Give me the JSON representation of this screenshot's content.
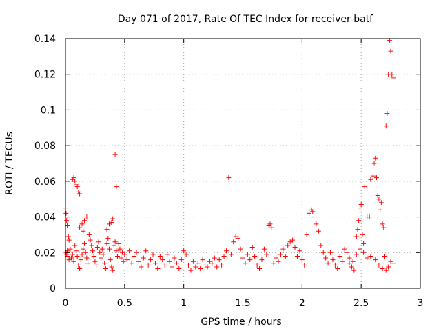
{
  "chart_data": {
    "type": "scatter",
    "title": "Day 071 of 2017, Rate Of TEC Index for receiver batf",
    "xlabel": "GPS time / hours",
    "ylabel": "ROTI / TECUs",
    "xlim": [
      0,
      3
    ],
    "ylim": [
      0,
      0.14
    ],
    "xticks": [
      0,
      0.5,
      1,
      1.5,
      2,
      2.5,
      3
    ],
    "xtick_labels": [
      "0",
      "0.5",
      "1",
      "1.5",
      "2",
      "2.5",
      "3"
    ],
    "yticks": [
      0,
      0.02,
      0.04,
      0.06,
      0.08,
      0.1,
      0.12,
      0.14
    ],
    "ytick_labels": [
      "0",
      "0.02",
      "0.04",
      "0.06",
      "0.08",
      "0.1",
      "0.12",
      "0.14"
    ],
    "grid": true,
    "marker": "+",
    "color": "#ff0000",
    "series": [
      {
        "points": [
          [
            0.0,
            0.045
          ],
          [
            0.005,
            0.042
          ],
          [
            0.01,
            0.038
          ],
          [
            0.015,
            0.035
          ],
          [
            0.02,
            0.04
          ],
          [
            0.025,
            0.029
          ],
          [
            0.03,
            0.027
          ],
          [
            0.06,
            0.061
          ],
          [
            0.07,
            0.062
          ],
          [
            0.08,
            0.06
          ],
          [
            0.09,
            0.058
          ],
          [
            0.1,
            0.057
          ],
          [
            0.11,
            0.054
          ],
          [
            0.12,
            0.053
          ],
          [
            0.16,
            0.038
          ],
          [
            0.18,
            0.04
          ],
          [
            0.12,
            0.034
          ],
          [
            0.14,
            0.036
          ],
          [
            0.15,
            0.032
          ],
          [
            0.37,
            0.036
          ],
          [
            0.39,
            0.037
          ],
          [
            0.4,
            0.039
          ],
          [
            0.35,
            0.033
          ],
          [
            0.42,
            0.075
          ],
          [
            0.43,
            0.057
          ],
          [
            0.005,
            0.02
          ],
          [
            0.01,
            0.019
          ],
          [
            0.015,
            0.021
          ],
          [
            0.02,
            0.018
          ],
          [
            0.03,
            0.016
          ],
          [
            0.04,
            0.022
          ],
          [
            0.05,
            0.017
          ],
          [
            0.06,
            0.019
          ],
          [
            0.07,
            0.015
          ],
          [
            0.08,
            0.024
          ],
          [
            0.09,
            0.021
          ],
          [
            0.1,
            0.018
          ],
          [
            0.11,
            0.013
          ],
          [
            0.12,
            0.011
          ],
          [
            0.13,
            0.016
          ],
          [
            0.14,
            0.019
          ],
          [
            0.15,
            0.022
          ],
          [
            0.16,
            0.025
          ],
          [
            0.17,
            0.02
          ],
          [
            0.18,
            0.017
          ],
          [
            0.19,
            0.014
          ],
          [
            0.2,
            0.03
          ],
          [
            0.21,
            0.027
          ],
          [
            0.22,
            0.024
          ],
          [
            0.23,
            0.021
          ],
          [
            0.24,
            0.018
          ],
          [
            0.25,
            0.015
          ],
          [
            0.26,
            0.013
          ],
          [
            0.27,
            0.023
          ],
          [
            0.28,
            0.026
          ],
          [
            0.29,
            0.02
          ],
          [
            0.3,
            0.017
          ],
          [
            0.31,
            0.022
          ],
          [
            0.32,
            0.019
          ],
          [
            0.33,
            0.014
          ],
          [
            0.34,
            0.011
          ],
          [
            0.35,
            0.025
          ],
          [
            0.36,
            0.028
          ],
          [
            0.37,
            0.022
          ],
          [
            0.38,
            0.016
          ],
          [
            0.39,
            0.012
          ],
          [
            0.4,
            0.01
          ],
          [
            0.41,
            0.024
          ],
          [
            0.42,
            0.026
          ],
          [
            0.43,
            0.021
          ],
          [
            0.44,
            0.018
          ],
          [
            0.45,
            0.025
          ],
          [
            0.46,
            0.022
          ],
          [
            0.47,
            0.017
          ],
          [
            0.48,
            0.02
          ],
          [
            0.49,
            0.015
          ],
          [
            0.5,
            0.019
          ],
          [
            0.52,
            0.016
          ],
          [
            0.54,
            0.021
          ],
          [
            0.56,
            0.014
          ],
          [
            0.58,
            0.018
          ],
          [
            0.6,
            0.02
          ],
          [
            0.62,
            0.015
          ],
          [
            0.64,
            0.012
          ],
          [
            0.66,
            0.017
          ],
          [
            0.68,
            0.021
          ],
          [
            0.7,
            0.013
          ],
          [
            0.72,
            0.016
          ],
          [
            0.74,
            0.019
          ],
          [
            0.76,
            0.014
          ],
          [
            0.78,
            0.011
          ],
          [
            0.8,
            0.018
          ],
          [
            0.82,
            0.016
          ],
          [
            0.84,
            0.013
          ],
          [
            0.86,
            0.019
          ],
          [
            0.88,
            0.015
          ],
          [
            0.9,
            0.012
          ],
          [
            0.92,
            0.017
          ],
          [
            0.94,
            0.014
          ],
          [
            0.96,
            0.011
          ],
          [
            0.98,
            0.016
          ],
          [
            1.0,
            0.021
          ],
          [
            1.02,
            0.019
          ],
          [
            1.04,
            0.013
          ],
          [
            1.06,
            0.01
          ],
          [
            1.08,
            0.015
          ],
          [
            1.1,
            0.012
          ],
          [
            1.12,
            0.014
          ],
          [
            1.14,
            0.011
          ],
          [
            1.16,
            0.016
          ],
          [
            1.18,
            0.013
          ],
          [
            1.2,
            0.012
          ],
          [
            1.22,
            0.015
          ],
          [
            1.24,
            0.014
          ],
          [
            1.26,
            0.017
          ],
          [
            1.28,
            0.012
          ],
          [
            1.3,
            0.016
          ],
          [
            1.32,
            0.013
          ],
          [
            1.34,
            0.018
          ],
          [
            1.36,
            0.021
          ],
          [
            1.38,
            0.062
          ],
          [
            1.4,
            0.019
          ],
          [
            1.42,
            0.026
          ],
          [
            1.44,
            0.029
          ],
          [
            1.46,
            0.028
          ],
          [
            1.48,
            0.022
          ],
          [
            1.5,
            0.017
          ],
          [
            1.52,
            0.014
          ],
          [
            1.54,
            0.019
          ],
          [
            1.56,
            0.016
          ],
          [
            1.58,
            0.023
          ],
          [
            1.6,
            0.018
          ],
          [
            1.62,
            0.013
          ],
          [
            1.64,
            0.011
          ],
          [
            1.66,
            0.016
          ],
          [
            1.68,
            0.022
          ],
          [
            1.7,
            0.019
          ],
          [
            1.72,
            0.035
          ],
          [
            1.73,
            0.036
          ],
          [
            1.74,
            0.034
          ],
          [
            1.76,
            0.014
          ],
          [
            1.78,
            0.017
          ],
          [
            1.8,
            0.015
          ],
          [
            1.82,
            0.019
          ],
          [
            1.84,
            0.022
          ],
          [
            1.86,
            0.018
          ],
          [
            1.88,
            0.024
          ],
          [
            1.9,
            0.026
          ],
          [
            1.92,
            0.027
          ],
          [
            1.94,
            0.023
          ],
          [
            1.96,
            0.018
          ],
          [
            1.98,
            0.021
          ],
          [
            2.0,
            0.016
          ],
          [
            2.02,
            0.013
          ],
          [
            2.04,
            0.03
          ],
          [
            2.06,
            0.042
          ],
          [
            2.08,
            0.044
          ],
          [
            2.09,
            0.043
          ],
          [
            2.1,
            0.04
          ],
          [
            2.12,
            0.036
          ],
          [
            2.14,
            0.032
          ],
          [
            2.16,
            0.024
          ],
          [
            2.18,
            0.02
          ],
          [
            2.2,
            0.017
          ],
          [
            2.22,
            0.014
          ],
          [
            2.24,
            0.02
          ],
          [
            2.26,
            0.016
          ],
          [
            2.28,
            0.013
          ],
          [
            2.3,
            0.011
          ],
          [
            2.32,
            0.018
          ],
          [
            2.34,
            0.015
          ],
          [
            2.36,
            0.022
          ],
          [
            2.38,
            0.02
          ],
          [
            2.4,
            0.017
          ],
          [
            2.42,
            0.012
          ],
          [
            2.44,
            0.01
          ],
          [
            2.46,
            0.029
          ],
          [
            2.47,
            0.033
          ],
          [
            2.48,
            0.038
          ],
          [
            2.49,
            0.045
          ],
          [
            2.5,
            0.047
          ],
          [
            2.51,
            0.03
          ],
          [
            2.52,
            0.025
          ],
          [
            2.53,
            0.057
          ],
          [
            2.55,
            0.04
          ],
          [
            2.57,
            0.04
          ],
          [
            2.58,
            0.061
          ],
          [
            2.6,
            0.063
          ],
          [
            2.61,
            0.07
          ],
          [
            2.62,
            0.073
          ],
          [
            2.63,
            0.062
          ],
          [
            2.64,
            0.052
          ],
          [
            2.65,
            0.05
          ],
          [
            2.66,
            0.044
          ],
          [
            2.67,
            0.048
          ],
          [
            2.68,
            0.036
          ],
          [
            2.69,
            0.034
          ],
          [
            2.7,
            0.018
          ],
          [
            2.71,
            0.091
          ],
          [
            2.72,
            0.098
          ],
          [
            2.73,
            0.12
          ],
          [
            2.74,
            0.139
          ],
          [
            2.75,
            0.133
          ],
          [
            2.76,
            0.12
          ],
          [
            2.77,
            0.118
          ],
          [
            2.75,
            0.015
          ],
          [
            2.77,
            0.014
          ],
          [
            2.73,
            0.012
          ],
          [
            2.71,
            0.01
          ],
          [
            2.68,
            0.011
          ],
          [
            2.65,
            0.013
          ],
          [
            2.62,
            0.016
          ],
          [
            2.58,
            0.018
          ],
          [
            2.55,
            0.017
          ],
          [
            2.52,
            0.02
          ],
          [
            2.49,
            0.022
          ],
          [
            2.46,
            0.019
          ],
          [
            2.43,
            0.015
          ],
          [
            2.4,
            0.014
          ]
        ]
      }
    ]
  }
}
